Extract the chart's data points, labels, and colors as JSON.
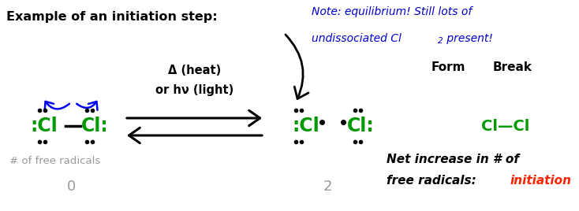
{
  "title": "Example of an initiation step:",
  "note_line1": "Note: equilibrium! Still lots of",
  "note_line2_pre": "undissociated Cl",
  "note_line2_sub": "2",
  "note_line2_post": " present!",
  "heat_text": "Δ (heat)",
  "light_text": "or hν (light)",
  "form_label": "Form",
  "break_label": "Break",
  "free_radicals_label": "# of free radicals",
  "count_left": "0",
  "count_right": "2",
  "net_line1": "Net increase in # of",
  "net_line2": "free radicals: ",
  "net_word": "initiation",
  "background_color": "#ffffff",
  "title_color": "#000000",
  "note_color": "#0000cc",
  "cl_color": "#009900",
  "dot_color": "#000000",
  "gray_color": "#999999",
  "red_color": "#ff2200",
  "black_color": "#000000",
  "blue_arrow_color": "#0000ee"
}
